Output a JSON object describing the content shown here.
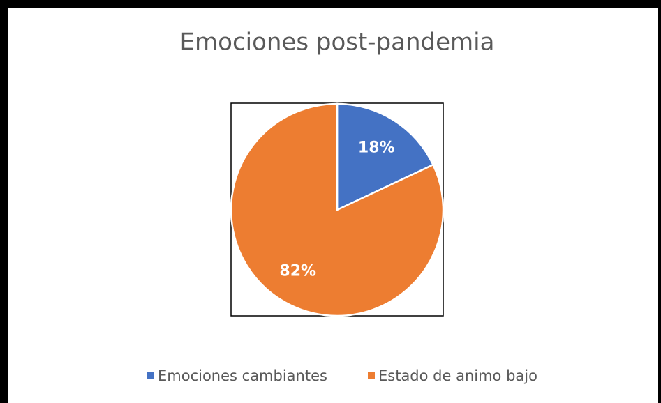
{
  "chart_data": {
    "type": "pie",
    "title": "Emociones post-pandemia",
    "categories": [
      "Emociones cambiantes",
      "Estado de animo bajo"
    ],
    "values": [
      18,
      82
    ],
    "value_labels": [
      "18%",
      "82%"
    ],
    "colors": [
      "#4472c4",
      "#ed7d31"
    ],
    "legend": "bottom"
  }
}
